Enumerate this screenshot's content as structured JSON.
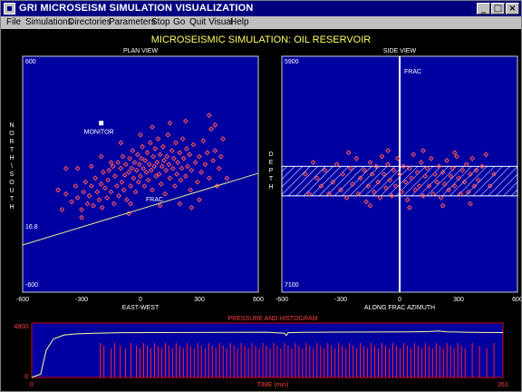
{
  "window": {
    "title": "GRI MICROSEISM SIMULATION VISUALIZATION",
    "minimize_icon": "minimize-icon",
    "maximize_icon": "maximize-icon",
    "close_icon": "close-icon"
  },
  "menu": [
    "File",
    "Simulations",
    "Directories",
    "Parameters",
    "Stop",
    "Go",
    "Quit Visual",
    "Help"
  ],
  "main_title": "MICROSEISMIC SIMULATION: OIL RESERVOIR",
  "colors": {
    "panel": "#0000a0",
    "point": "#ff5a5a",
    "line": "#e8e890",
    "title": "#ffff66",
    "hist": "#ff2020"
  },
  "plan_view": {
    "title": "PLAN VIEW",
    "x_ticks": [
      "-600",
      "-300",
      "0",
      "300",
      "600"
    ],
    "y_top": "600",
    "y_bottom": "-600",
    "y_mid": "16.8",
    "xlabel": "EAST-WEST",
    "ylabel": "NORTH\\SOUTH",
    "monitor_label": "MONITOR",
    "frac_label": "FRAC",
    "monitor": {
      "x": -200,
      "y": 260
    }
  },
  "side_view": {
    "title": "SIDE VIEW",
    "x_ticks": [
      "-600",
      "-300",
      "0",
      "300",
      "600"
    ],
    "y_top": "5900",
    "y_bottom": "7100",
    "xlabel": "ALONG FRAC AZIMUTH",
    "ylabel": "DEPTH",
    "frac_label": "FRAC",
    "reservoir_depth": [
      6460,
      6610
    ]
  },
  "histogram": {
    "title": "PRESSURE AND HISTOGRAM",
    "y_top": "4800",
    "y_bottom": "0",
    "x_start": "0",
    "x_end": "261",
    "xlabel": "TIME (min)"
  },
  "chart_data": [
    {
      "type": "scatter",
      "title": "PLAN VIEW",
      "xlabel": "EAST-WEST",
      "ylabel": "NORTH\\SOUTH",
      "xlim": [
        -600,
        600
      ],
      "ylim": [
        -600,
        600
      ],
      "trend_line": {
        "x": [
          -600,
          600
        ],
        "y": [
          -360,
          5
        ]
      },
      "points": [
        [
          -380,
          -100
        ],
        [
          -350,
          -140
        ],
        [
          -330,
          -60
        ],
        [
          -320,
          -120
        ],
        [
          -300,
          -180
        ],
        [
          -290,
          -90
        ],
        [
          -280,
          -40
        ],
        [
          -270,
          -150
        ],
        [
          -260,
          -110
        ],
        [
          -250,
          -60
        ],
        [
          -240,
          -160
        ],
        [
          -230,
          -20
        ],
        [
          -220,
          -90
        ],
        [
          -210,
          -130
        ],
        [
          -200,
          -50
        ],
        [
          -195,
          -170
        ],
        [
          -190,
          10
        ],
        [
          -180,
          -70
        ],
        [
          -170,
          -120
        ],
        [
          -165,
          -30
        ],
        [
          -160,
          20
        ],
        [
          -150,
          -90
        ],
        [
          -140,
          40
        ],
        [
          -135,
          -150
        ],
        [
          -130,
          -10
        ],
        [
          -120,
          -60
        ],
        [
          -115,
          60
        ],
        [
          -110,
          -110
        ],
        [
          -100,
          30
        ],
        [
          -95,
          -40
        ],
        [
          -90,
          90
        ],
        [
          -85,
          -80
        ],
        [
          -80,
          -5
        ],
        [
          -75,
          50
        ],
        [
          -70,
          -130
        ],
        [
          -60,
          10
        ],
        [
          -55,
          80
        ],
        [
          -50,
          -60
        ],
        [
          -45,
          30
        ],
        [
          -40,
          120
        ],
        [
          -35,
          -20
        ],
        [
          -30,
          60
        ],
        [
          -25,
          -90
        ],
        [
          -20,
          20
        ],
        [
          -15,
          100
        ],
        [
          -10,
          -40
        ],
        [
          -5,
          50
        ],
        [
          0,
          -10
        ],
        [
          5,
          80
        ],
        [
          10,
          140
        ],
        [
          15,
          30
        ],
        [
          20,
          -60
        ],
        [
          25,
          70
        ],
        [
          30,
          10
        ],
        [
          35,
          110
        ],
        [
          40,
          -30
        ],
        [
          45,
          50
        ],
        [
          50,
          160
        ],
        [
          55,
          20
        ],
        [
          60,
          -80
        ],
        [
          65,
          90
        ],
        [
          70,
          40
        ],
        [
          75,
          130
        ],
        [
          80,
          -10
        ],
        [
          85,
          60
        ],
        [
          90,
          180
        ],
        [
          95,
          0
        ],
        [
          100,
          100
        ],
        [
          105,
          -50
        ],
        [
          110,
          40
        ],
        [
          115,
          140
        ],
        [
          120,
          70
        ],
        [
          125,
          -100
        ],
        [
          130,
          20
        ],
        [
          135,
          90
        ],
        [
          140,
          200
        ],
        [
          145,
          50
        ],
        [
          150,
          -20
        ],
        [
          160,
          120
        ],
        [
          165,
          30
        ],
        [
          170,
          80
        ],
        [
          175,
          -60
        ],
        [
          180,
          160
        ],
        [
          185,
          0
        ],
        [
          190,
          60
        ],
        [
          200,
          110
        ],
        [
          205,
          -30
        ],
        [
          210,
          30
        ],
        [
          215,
          180
        ],
        [
          220,
          80
        ],
        [
          230,
          -10
        ],
        [
          235,
          130
        ],
        [
          240,
          40
        ],
        [
          250,
          100
        ],
        [
          255,
          -80
        ],
        [
          260,
          20
        ],
        [
          270,
          150
        ],
        [
          280,
          60
        ],
        [
          290,
          -40
        ],
        [
          300,
          90
        ],
        [
          310,
          10
        ],
        [
          320,
          170
        ],
        [
          330,
          50
        ],
        [
          340,
          110
        ],
        [
          350,
          -20
        ],
        [
          360,
          230
        ],
        [
          370,
          70
        ],
        [
          380,
          120
        ],
        [
          390,
          -60
        ],
        [
          400,
          30
        ],
        [
          410,
          90
        ],
        [
          420,
          180
        ],
        [
          380,
          250
        ],
        [
          300,
          -130
        ],
        [
          200,
          -150
        ],
        [
          -50,
          -150
        ],
        [
          -150,
          60
        ],
        [
          -250,
          40
        ],
        [
          -320,
          30
        ],
        [
          -380,
          30
        ],
        [
          -420,
          -80
        ],
        [
          -200,
          90
        ],
        [
          100,
          -160
        ],
        [
          260,
          -170
        ],
        [
          440,
          -20
        ],
        [
          350,
          300
        ],
        [
          230,
          270
        ],
        [
          150,
          260
        ],
        [
          -100,
          160
        ],
        [
          0,
          200
        ],
        [
          60,
          240
        ],
        [
          -60,
          -200
        ],
        [
          -300,
          -220
        ],
        [
          -400,
          -180
        ]
      ]
    },
    {
      "type": "scatter",
      "title": "SIDE VIEW",
      "xlabel": "ALONG FRAC AZIMUTH",
      "ylabel": "DEPTH",
      "xlim": [
        -600,
        600
      ],
      "ylim": [
        7100,
        5900
      ],
      "points": [
        [
          -420,
          6520
        ],
        [
          -400,
          6560
        ],
        [
          -380,
          6480
        ],
        [
          -360,
          6600
        ],
        [
          -340,
          6540
        ],
        [
          -320,
          6450
        ],
        [
          -300,
          6580
        ],
        [
          -290,
          6500
        ],
        [
          -270,
          6620
        ],
        [
          -250,
          6470
        ],
        [
          -240,
          6550
        ],
        [
          -220,
          6420
        ],
        [
          -210,
          6600
        ],
        [
          -200,
          6520
        ],
        [
          -180,
          6480
        ],
        [
          -170,
          6640
        ],
        [
          -160,
          6560
        ],
        [
          -150,
          6440
        ],
        [
          -140,
          6500
        ],
        [
          -130,
          6590
        ],
        [
          -120,
          6460
        ],
        [
          -110,
          6540
        ],
        [
          -100,
          6620
        ],
        [
          -90,
          6410
        ],
        [
          -80,
          6500
        ],
        [
          -70,
          6570
        ],
        [
          -60,
          6450
        ],
        [
          -50,
          6530
        ],
        [
          -40,
          6610
        ],
        [
          -30,
          6480
        ],
        [
          -20,
          6560
        ],
        [
          -10,
          6420
        ],
        [
          0,
          6500
        ],
        [
          10,
          6590
        ],
        [
          20,
          6460
        ],
        [
          30,
          6540
        ],
        [
          40,
          6630
        ],
        [
          50,
          6470
        ],
        [
          60,
          6520
        ],
        [
          70,
          6400
        ],
        [
          80,
          6580
        ],
        [
          90,
          6490
        ],
        [
          100,
          6560
        ],
        [
          110,
          6440
        ],
        [
          120,
          6610
        ],
        [
          130,
          6510
        ],
        [
          140,
          6470
        ],
        [
          150,
          6560
        ],
        [
          160,
          6420
        ],
        [
          170,
          6600
        ],
        [
          180,
          6500
        ],
        [
          190,
          6540
        ],
        [
          200,
          6460
        ],
        [
          210,
          6620
        ],
        [
          220,
          6490
        ],
        [
          230,
          6550
        ],
        [
          240,
          6430
        ],
        [
          250,
          6580
        ],
        [
          260,
          6510
        ],
        [
          270,
          6470
        ],
        [
          280,
          6560
        ],
        [
          290,
          6410
        ],
        [
          300,
          6520
        ],
        [
          310,
          6600
        ],
        [
          320,
          6480
        ],
        [
          330,
          6540
        ],
        [
          340,
          6450
        ],
        [
          350,
          6590
        ],
        [
          360,
          6500
        ],
        [
          370,
          6420
        ],
        [
          380,
          6560
        ],
        [
          390,
          6480
        ],
        [
          400,
          6530
        ],
        [
          420,
          6460
        ],
        [
          440,
          6400
        ],
        [
          460,
          6560
        ],
        [
          480,
          6500
        ],
        [
          -440,
          6440
        ],
        [
          -460,
          6600
        ],
        [
          -480,
          6500
        ],
        [
          -260,
          6390
        ],
        [
          -60,
          6380
        ],
        [
          120,
          6380
        ],
        [
          280,
          6390
        ],
        [
          -150,
          6660
        ],
        [
          50,
          6670
        ],
        [
          220,
          6660
        ],
        [
          360,
          6650
        ]
      ]
    },
    {
      "type": "line",
      "title": "PRESSURE AND HISTOGRAM",
      "xlabel": "TIME (min)",
      "xlim": [
        0,
        261
      ],
      "ylim": [
        0,
        4800
      ],
      "pressure": {
        "x": [
          0,
          5,
          8,
          12,
          18,
          25,
          35,
          50,
          70,
          90,
          110,
          130,
          140,
          141,
          142,
          150,
          170,
          190,
          210,
          220,
          225,
          230,
          240,
          250,
          261
        ],
        "y": [
          0,
          300,
          2400,
          3400,
          3750,
          3850,
          3900,
          3950,
          3960,
          3970,
          3980,
          3990,
          3900,
          3700,
          3950,
          3980,
          4000,
          4010,
          4020,
          4050,
          4100,
          4020,
          3990,
          3970,
          3960
        ]
      },
      "events_time": [
        38,
        40,
        44,
        46,
        49,
        52,
        55,
        58,
        60,
        62,
        64,
        66,
        68,
        70,
        72,
        74,
        76,
        78,
        80,
        82,
        84,
        86,
        88,
        90,
        92,
        94,
        96,
        98,
        100,
        102,
        104,
        106,
        108,
        110,
        112,
        114,
        116,
        118,
        120,
        122,
        124,
        126,
        128,
        130,
        132,
        134,
        136,
        138,
        140,
        142,
        144,
        146,
        148,
        150,
        152,
        154,
        156,
        158,
        160,
        162,
        164,
        166,
        168,
        170,
        172,
        174,
        176,
        178,
        180,
        182,
        184,
        186,
        188,
        190,
        192,
        194,
        196,
        198,
        200,
        202,
        204,
        206,
        208,
        210,
        212,
        214,
        216,
        218,
        220,
        222,
        224,
        226,
        228,
        230,
        232,
        234,
        236,
        238,
        240,
        244,
        248,
        252,
        256
      ]
    }
  ]
}
